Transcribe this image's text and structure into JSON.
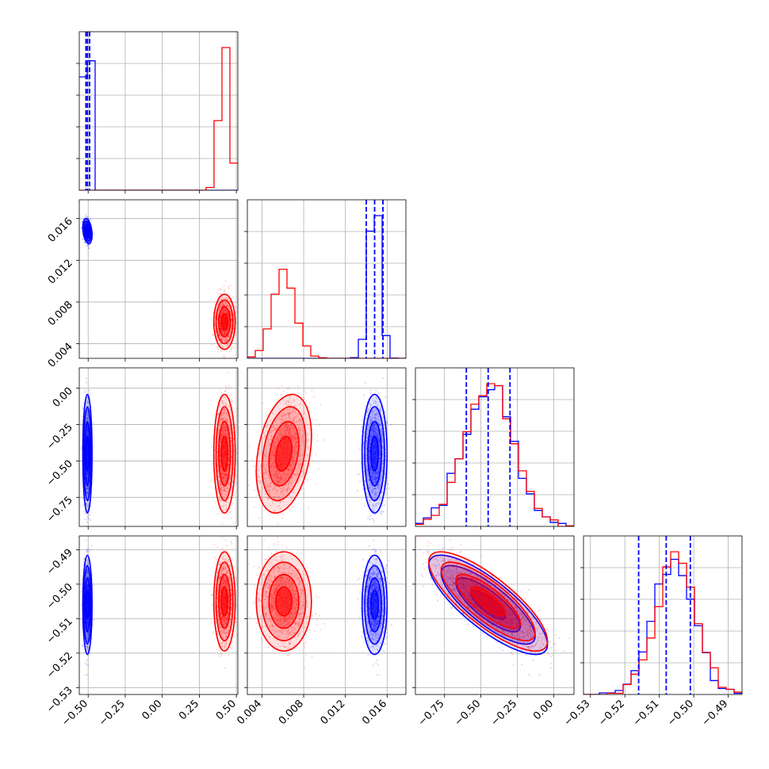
{
  "chart_data": {
    "type": "corner",
    "grid": true,
    "parameters": [
      {
        "range": [
          -0.56,
          0.51
        ],
        "ticks": [
          -0.5,
          -0.25,
          0.0,
          0.25,
          0.5
        ],
        "tick_labels": [
          "−0.50",
          "−0.25",
          "0.00",
          "0.25",
          "0.50"
        ]
      },
      {
        "range": [
          0.0026,
          0.0178
        ],
        "ticks": [
          0.004,
          0.008,
          0.012,
          0.016
        ],
        "tick_labels": [
          "0.004",
          "0.008",
          "0.012",
          "0.016"
        ]
      },
      {
        "range": [
          -0.95,
          0.14
        ],
        "ticks": [
          -0.75,
          -0.5,
          -0.25,
          0.0
        ],
        "tick_labels": [
          "−0.75",
          "−0.50",
          "−0.25",
          "0.00"
        ]
      },
      {
        "range": [
          -0.532,
          -0.486
        ],
        "ticks": [
          -0.53,
          -0.52,
          -0.51,
          -0.5,
          -0.49
        ],
        "tick_labels": [
          "−0.53",
          "−0.52",
          "−0.51",
          "−0.50",
          "−0.49"
        ]
      }
    ],
    "series": [
      {
        "color": "#0000ff",
        "mean": [
          -0.505,
          0.0148,
          -0.45,
          -0.506
        ],
        "std": [
          0.013,
          0.0005,
          0.17,
          0.006
        ],
        "correlations": [
          [
            0,
            1,
            -0.3
          ],
          [
            2,
            3,
            -0.8
          ]
        ],
        "quantiles": [
          [
            -0.515,
            -0.505,
            -0.49
          ],
          [
            0.014,
            0.0148,
            0.0156
          ],
          [
            -0.6,
            -0.45,
            -0.3
          ],
          [
            -0.516,
            -0.508,
            -0.501
          ]
        ]
      },
      {
        "color": "#ff0000",
        "mean": [
          0.42,
          0.0061,
          -0.45,
          -0.505
        ],
        "std": [
          0.03,
          0.0011,
          0.17,
          0.006
        ],
        "correlations": [
          [
            1,
            2,
            0.3
          ],
          [
            2,
            3,
            -0.8
          ]
        ],
        "quantiles": null
      }
    ]
  }
}
